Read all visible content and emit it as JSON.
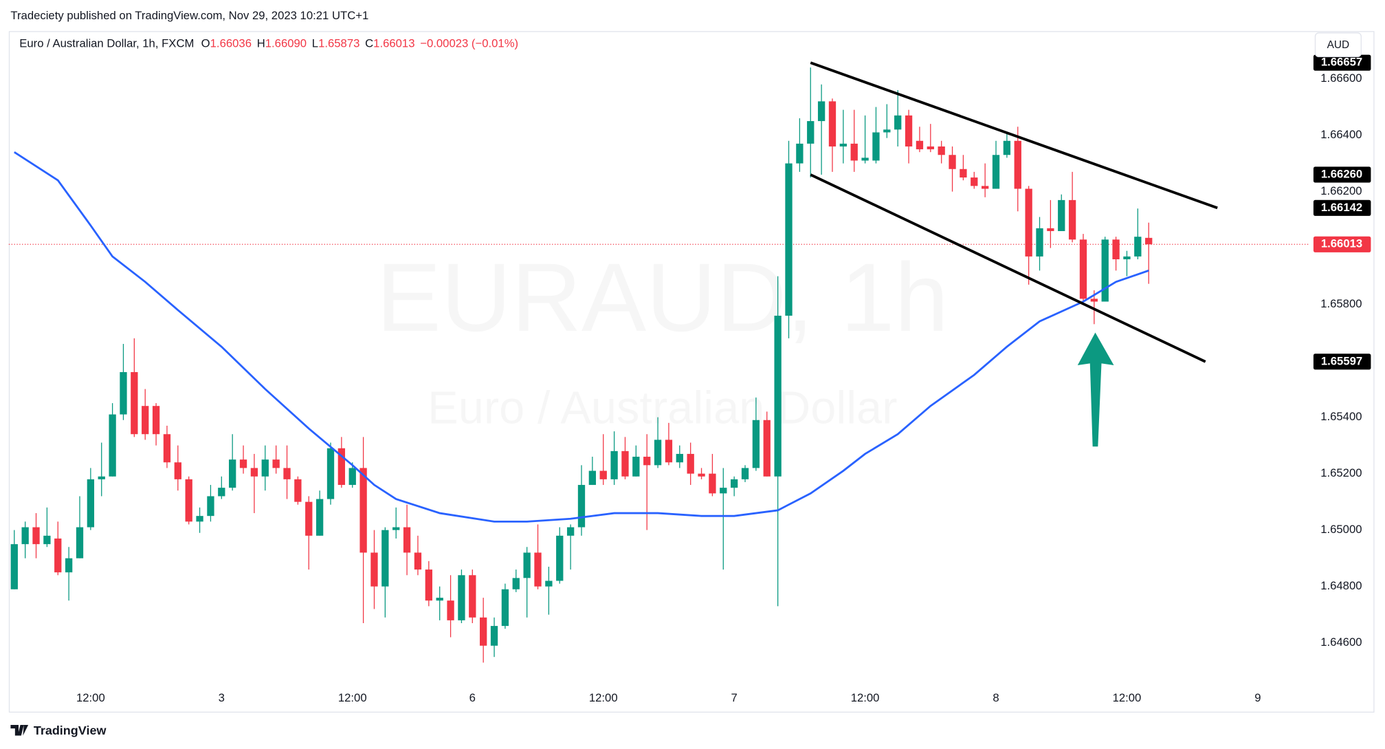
{
  "chart_data": {
    "type": "candlestick",
    "published": "Tradeciety published on TradingView.com, Nov 29, 2023 10:21 UTC+1",
    "title": "Euro / Australian Dollar, 1h, FXCM",
    "ohlc_legend": [
      {
        "label": "O",
        "value": "1.66036"
      },
      {
        "label": "H",
        "value": "1.66090"
      },
      {
        "label": "L",
        "value": "1.65873"
      },
      {
        "label": "C",
        "value": "1.66013"
      }
    ],
    "change": "−0.00023 (−0.01%)",
    "watermark": [
      "EURAUD, 1h",
      "Euro / Australian Dollar"
    ],
    "currency": "AUD",
    "brand": "TradingView",
    "up_color": "#089981",
    "down_color": "#f23645",
    "xlim": [
      -0.5,
      118.7
    ],
    "xticks": [
      {
        "value": 7,
        "label": "12:00"
      },
      {
        "value": 19,
        "label": "3"
      },
      {
        "value": 31,
        "label": "12:00"
      },
      {
        "value": 42,
        "label": "6"
      },
      {
        "value": 54,
        "label": "12:00"
      },
      {
        "value": 66,
        "label": "7"
      },
      {
        "value": 78,
        "label": "12:00"
      },
      {
        "value": 90,
        "label": "8"
      },
      {
        "value": 102,
        "label": "12:00"
      },
      {
        "value": 114,
        "label": "9"
      }
    ],
    "ylim": [
      1.6445,
      1.66769
    ],
    "yticks": [
      {
        "value": 1.646,
        "label": "1.64600"
      },
      {
        "value": 1.648,
        "label": "1.64800"
      },
      {
        "value": 1.65,
        "label": "1.65000"
      },
      {
        "value": 1.652,
        "label": "1.65200"
      },
      {
        "value": 1.654,
        "label": "1.65400"
      },
      {
        "value": 1.656,
        "label": "1.65600"
      },
      {
        "value": 1.658,
        "label": "1.65800"
      },
      {
        "value": 1.66,
        "label": "1.66000"
      },
      {
        "value": 1.662,
        "label": "1.66200"
      },
      {
        "value": 1.664,
        "label": "1.66400"
      },
      {
        "value": 1.666,
        "label": "1.66600"
      }
    ],
    "open": [
      1.6479,
      1.6495,
      1.6501,
      1.6495,
      1.6497,
      1.6485,
      1.649,
      1.6501,
      1.6518,
      1.6519,
      1.6541,
      1.6556,
      1.6544,
      1.6544,
      1.6534,
      1.6524,
      1.6518,
      1.6503,
      1.6505,
      1.6512,
      1.6515,
      1.6525,
      1.6522,
      1.6519,
      1.6525,
      1.6522,
      1.6518,
      1.651,
      1.6498,
      1.6511,
      1.6529,
      1.6516,
      1.6522,
      1.6492,
      1.648,
      1.65,
      1.6501,
      1.6492,
      1.6486,
      1.6475,
      1.6475,
      1.6468,
      1.6484,
      1.6469,
      1.6459,
      1.6466,
      1.6479,
      1.6483,
      1.6492,
      1.648,
      1.6482,
      1.6498,
      1.6501,
      1.6516,
      1.6521,
      1.6518,
      1.6528,
      1.6519,
      1.6526,
      1.6523,
      1.6532,
      1.6524,
      1.6527,
      1.652,
      1.652,
      1.6513,
      1.6515,
      1.6518,
      1.6522,
      1.6539,
      1.6519,
      1.6576,
      1.663,
      1.6637,
      1.6645,
      1.6652,
      1.6636,
      1.6637,
      1.6631,
      1.6631,
      1.6641,
      1.6642,
      1.6647,
      1.6638,
      1.6636,
      1.6636,
      1.6633,
      1.6628,
      1.6625,
      1.6622,
      1.6621,
      1.6633,
      1.6638,
      1.6621,
      1.6597,
      1.6607,
      1.6606,
      1.6617,
      1.6603,
      1.6582,
      1.6581,
      1.6603,
      1.6596,
      1.6597,
      1.66036
    ],
    "high": [
      1.65,
      1.6503,
      1.6506,
      1.6508,
      1.6503,
      1.6494,
      1.6512,
      1.6522,
      1.6531,
      1.6545,
      1.6566,
      1.6568,
      1.655,
      1.6545,
      1.6537,
      1.653,
      1.6519,
      1.6508,
      1.6516,
      1.6519,
      1.6534,
      1.653,
      1.6527,
      1.653,
      1.653,
      1.653,
      1.6519,
      1.6512,
      1.6514,
      1.6531,
      1.6533,
      1.6524,
      1.6533,
      1.65,
      1.6501,
      1.6508,
      1.6509,
      1.6498,
      1.6489,
      1.648,
      1.6484,
      1.6486,
      1.6486,
      1.6476,
      1.6469,
      1.6481,
      1.6486,
      1.6494,
      1.6502,
      1.6487,
      1.6501,
      1.6502,
      1.6523,
      1.6526,
      1.6534,
      1.6535,
      1.6533,
      1.653,
      1.6534,
      1.654,
      1.6538,
      1.653,
      1.6531,
      1.6522,
      1.6527,
      1.6522,
      1.6519,
      1.6523,
      1.6547,
      1.6542,
      1.659,
      1.6638,
      1.6646,
      1.6664,
      1.6658,
      1.6653,
      1.6649,
      1.6649,
      1.6647,
      1.665,
      1.6651,
      1.6656,
      1.6649,
      1.6643,
      1.6644,
      1.6638,
      1.6636,
      1.6633,
      1.6627,
      1.663,
      1.6638,
      1.6641,
      1.6643,
      1.6622,
      1.6611,
      1.6617,
      1.6619,
      1.6627,
      1.6605,
      1.6585,
      1.6604,
      1.6604,
      1.6599,
      1.6614,
      1.6609
    ],
    "low": [
      1.6479,
      1.649,
      1.649,
      1.6494,
      1.6484,
      1.6475,
      1.649,
      1.65,
      1.6512,
      1.6519,
      1.6539,
      1.6533,
      1.6532,
      1.653,
      1.6522,
      1.6514,
      1.6502,
      1.6499,
      1.6503,
      1.6511,
      1.6514,
      1.652,
      1.6506,
      1.6514,
      1.652,
      1.6511,
      1.6509,
      1.6486,
      1.6498,
      1.6509,
      1.6515,
      1.6515,
      1.6467,
      1.6472,
      1.6469,
      1.6497,
      1.6484,
      1.6484,
      1.6473,
      1.6468,
      1.6462,
      1.6467,
      1.6467,
      1.6453,
      1.6455,
      1.6465,
      1.6478,
      1.6469,
      1.6479,
      1.647,
      1.6481,
      1.6486,
      1.6498,
      1.6516,
      1.6516,
      1.6516,
      1.6518,
      1.6519,
      1.65,
      1.6522,
      1.6523,
      1.6522,
      1.6516,
      1.6518,
      1.6512,
      1.6486,
      1.6512,
      1.6517,
      1.6521,
      1.6519,
      1.6473,
      1.6568,
      1.6627,
      1.6625,
      1.6626,
      1.6627,
      1.663,
      1.6627,
      1.663,
      1.663,
      1.6639,
      1.6636,
      1.663,
      1.6634,
      1.6634,
      1.663,
      1.662,
      1.6624,
      1.6621,
      1.6618,
      1.6621,
      1.6632,
      1.6613,
      1.6587,
      1.6592,
      1.66,
      1.6606,
      1.6602,
      1.6581,
      1.6573,
      1.6581,
      1.6592,
      1.659,
      1.6596,
      1.65873
    ],
    "close": [
      1.6495,
      1.6501,
      1.6495,
      1.6498,
      1.6485,
      1.649,
      1.6501,
      1.6518,
      1.6519,
      1.6541,
      1.6556,
      1.6534,
      1.6534,
      1.6534,
      1.6524,
      1.6518,
      1.6503,
      1.6505,
      1.6512,
      1.6515,
      1.6525,
      1.6522,
      1.6519,
      1.6525,
      1.6522,
      1.6518,
      1.651,
      1.6498,
      1.6511,
      1.6529,
      1.6516,
      1.6522,
      1.6492,
      1.648,
      1.65,
      1.6501,
      1.6492,
      1.6486,
      1.6475,
      1.6476,
      1.6468,
      1.6484,
      1.6469,
      1.6459,
      1.6466,
      1.6479,
      1.6483,
      1.6492,
      1.648,
      1.6482,
      1.6498,
      1.6501,
      1.6516,
      1.6521,
      1.6518,
      1.6528,
      1.6519,
      1.6526,
      1.6523,
      1.6532,
      1.6524,
      1.6527,
      1.652,
      1.6519,
      1.6513,
      1.6515,
      1.6518,
      1.6522,
      1.6539,
      1.6519,
      1.6576,
      1.663,
      1.6637,
      1.6645,
      1.6652,
      1.6636,
      1.6637,
      1.6631,
      1.6632,
      1.6641,
      1.6642,
      1.6647,
      1.6636,
      1.6635,
      1.6635,
      1.6633,
      1.6628,
      1.6625,
      1.6622,
      1.6621,
      1.6633,
      1.6638,
      1.6621,
      1.6597,
      1.6607,
      1.6606,
      1.6617,
      1.6603,
      1.6582,
      1.6581,
      1.6603,
      1.6596,
      1.6597,
      1.6604,
      1.66013
    ],
    "ma": {
      "color": "#2962ff",
      "x": [
        0,
        4,
        7,
        9,
        12,
        15,
        19,
        23,
        27,
        31,
        33,
        35,
        39,
        44,
        47,
        51,
        55,
        59,
        63,
        66,
        68,
        70,
        73,
        76,
        78,
        81,
        84,
        88,
        91,
        94,
        98,
        101,
        104
      ],
      "values": [
        1.6634,
        1.6624,
        1.6608,
        1.6597,
        1.6588,
        1.6578,
        1.6565,
        1.655,
        1.6536,
        1.6523,
        1.6516,
        1.6511,
        1.6506,
        1.6503,
        1.6503,
        1.6504,
        1.6506,
        1.6506,
        1.6505,
        1.6505,
        1.6506,
        1.6507,
        1.6513,
        1.6521,
        1.6527,
        1.6534,
        1.6544,
        1.6555,
        1.6565,
        1.6574,
        1.6581,
        1.6588,
        1.6592
      ]
    },
    "trendlines": [
      {
        "x": [
          73,
          110.3
        ],
        "values": [
          1.66657,
          1.66142
        ],
        "color": "#000000"
      },
      {
        "x": [
          73,
          109.2
        ],
        "values": [
          1.6626,
          1.65597
        ],
        "color": "#000000"
      }
    ],
    "price_labels": [
      {
        "value": 1.66657,
        "label": "1.66657",
        "color": "#000000"
      },
      {
        "value": 1.6626,
        "label": "1.66260",
        "color": "#000000"
      },
      {
        "value": 1.66142,
        "label": "1.66142",
        "color": "#000000"
      },
      {
        "value": 1.66013,
        "label": "1.66013",
        "color": "#f23645"
      },
      {
        "value": 1.65597,
        "label": "1.65597",
        "color": "#000000"
      }
    ]
  }
}
